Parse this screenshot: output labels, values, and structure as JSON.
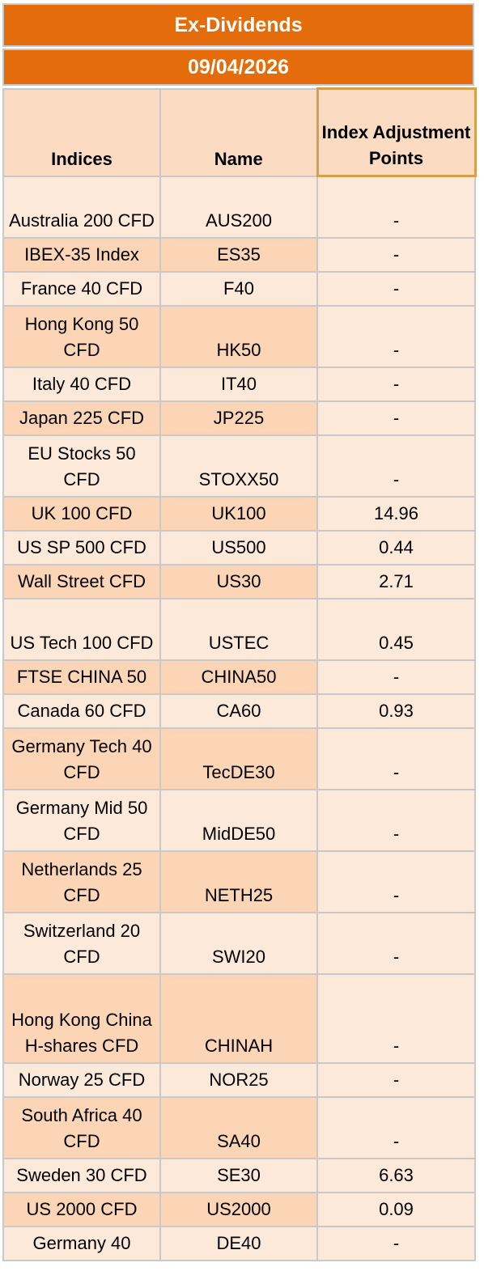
{
  "title": "Ex-Dividends",
  "date": "09/04/2026",
  "headers": {
    "indices": "Indices",
    "name": "Name",
    "adjustment": "Index Adjustment Points"
  },
  "rows": [
    {
      "index": "Australia 200 CFD",
      "name": "AUS200",
      "points": "-"
    },
    {
      "index": "IBEX-35 Index",
      "name": "ES35",
      "points": "-"
    },
    {
      "index": "France 40 CFD",
      "name": "F40",
      "points": "-"
    },
    {
      "index": "Hong Kong 50 CFD",
      "name": "HK50",
      "points": "-"
    },
    {
      "index": "Italy 40 CFD",
      "name": "IT40",
      "points": "-"
    },
    {
      "index": "Japan 225 CFD",
      "name": "JP225",
      "points": "-"
    },
    {
      "index": "EU Stocks 50 CFD",
      "name": "STOXX50",
      "points": "-"
    },
    {
      "index": "UK 100 CFD",
      "name": "UK100",
      "points": "14.96"
    },
    {
      "index": "US SP 500 CFD",
      "name": "US500",
      "points": "0.44"
    },
    {
      "index": "Wall Street CFD",
      "name": "US30",
      "points": "2.71"
    },
    {
      "index": "US Tech 100 CFD",
      "name": "USTEC",
      "points": "0.45"
    },
    {
      "index": "FTSE CHINA 50",
      "name": "CHINA50",
      "points": "-"
    },
    {
      "index": "Canada 60 CFD",
      "name": "CA60",
      "points": "0.93"
    },
    {
      "index": "Germany Tech 40 CFD",
      "name": "TecDE30",
      "points": "-"
    },
    {
      "index": "Germany Mid 50 CFD",
      "name": "MidDE50",
      "points": "-"
    },
    {
      "index": "Netherlands 25 CFD",
      "name": "NETH25",
      "points": "-"
    },
    {
      "index": "Switzerland 20 CFD",
      "name": "SWI20",
      "points": "-"
    },
    {
      "index": "Hong Kong China H-shares CFD",
      "name": "CHINAH",
      "points": "-"
    },
    {
      "index": "Norway 25 CFD",
      "name": "NOR25",
      "points": "-"
    },
    {
      "index": "South Africa 40 CFD",
      "name": "SA40",
      "points": "-"
    },
    {
      "index": "Sweden 30 CFD",
      "name": "SE30",
      "points": "6.63"
    },
    {
      "index": "US 2000 CFD",
      "name": "US2000",
      "points": "0.09"
    },
    {
      "index": "Germany 40",
      "name": "DE40",
      "points": "-"
    }
  ]
}
